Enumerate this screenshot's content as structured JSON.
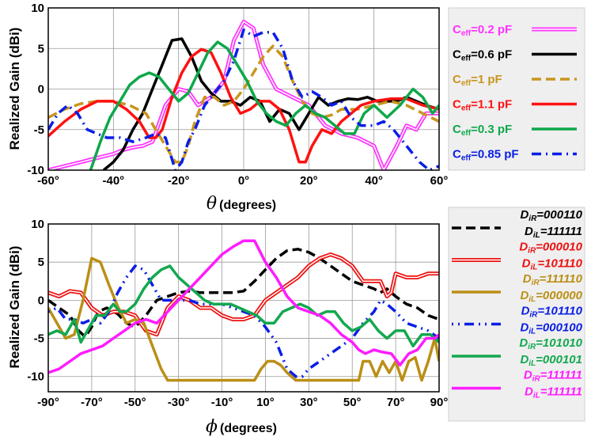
{
  "chart_data": [
    {
      "type": "line",
      "ylabel": "Realized Gain (dBi)",
      "xlabel_symbol": "θ",
      "xlabel_text": "(degrees)",
      "xlim": [
        -60,
        60
      ],
      "ylim": [
        -10,
        10
      ],
      "xticks": [
        "-60°",
        "-40°",
        "-20°",
        "0°",
        "20°",
        "40°",
        "60°"
      ],
      "yticks": [
        "10",
        "5",
        "0",
        "-5",
        "-10"
      ],
      "grid": true,
      "legend_position": "right",
      "series": [
        {
          "name": "0.2 pF",
          "name_prefix": "C",
          "name_sub": "eff",
          "name_rest": "=0.2 pF",
          "color": "#ff33ff",
          "style": "double",
          "x": [
            -60,
            -55,
            -50,
            -45,
            -40,
            -37,
            -34,
            -31,
            -28,
            -24,
            -20,
            -17,
            -14,
            -10,
            -6,
            -3,
            0,
            3,
            6,
            10,
            15,
            20,
            25,
            30,
            35,
            40,
            43,
            47,
            50,
            53,
            56,
            60
          ],
          "y": [
            -10,
            -9.5,
            -9,
            -8.5,
            -8,
            -7.5,
            -7.2,
            -7,
            -6.5,
            -2,
            0,
            -0.3,
            -2,
            -1,
            1,
            6,
            8.3,
            7.5,
            3,
            0,
            -1,
            -2,
            -4.5,
            -5.5,
            -6,
            -7,
            -10,
            -7,
            -4.5,
            -5,
            -3,
            -3
          ]
        },
        {
          "name": "0.6 pF",
          "name_prefix": "C",
          "name_sub": "eff",
          "name_rest": "=0.6 pF",
          "color": "#000000",
          "style": "solid",
          "x": [
            -43,
            -40,
            -37,
            -34,
            -31,
            -28,
            -25,
            -22,
            -19,
            -16,
            -13,
            -10,
            -7,
            -4,
            -1,
            2,
            5,
            8,
            11,
            14,
            17,
            20,
            23,
            26,
            29,
            32,
            35,
            38,
            41,
            44,
            47,
            50,
            53,
            56,
            60
          ],
          "y": [
            -10,
            -9,
            -7.5,
            -5,
            -3,
            0,
            3,
            6,
            6.2,
            4,
            1,
            -0.5,
            -1.5,
            -1.5,
            -2,
            -1,
            -1.5,
            -4,
            -2.5,
            -3,
            -5,
            -3,
            -1,
            -2,
            -1.5,
            -1.2,
            -1.3,
            -1,
            -1.5,
            -1.5,
            -1.5,
            -1,
            -1.5,
            -2,
            -2.5
          ]
        },
        {
          "name": "1 pF",
          "name_prefix": "C",
          "name_sub": "eff",
          "name_rest": "=1 pF",
          "color": "#c8961e",
          "style": "dashed",
          "x": [
            -60,
            -55,
            -50,
            -45,
            -40,
            -35,
            -30,
            -27,
            -24,
            -21,
            -19,
            -17,
            -15,
            -12,
            -9,
            -6,
            -3,
            0,
            3,
            6,
            9,
            12,
            15,
            18,
            21,
            24,
            27,
            30,
            35,
            40,
            45,
            50,
            55,
            60
          ],
          "y": [
            -3.5,
            -2.5,
            -1.8,
            -1.5,
            -1.5,
            -2,
            -3,
            -5,
            -7,
            -9,
            -9,
            -7,
            -4,
            -1,
            -1,
            -2,
            -1.5,
            0,
            2,
            4,
            5.3,
            4,
            1,
            -1.5,
            -3,
            -3.5,
            -3.2,
            -2.5,
            -2.5,
            -2,
            -1.5,
            -2,
            -3,
            -4
          ]
        },
        {
          "name": "1.1 pF",
          "name_prefix": "C",
          "name_sub": "eff",
          "name_rest": "=1.1 pF",
          "color": "#ff1111",
          "style": "solid",
          "x": [
            -60,
            -55,
            -50,
            -45,
            -40,
            -36,
            -32,
            -29,
            -27,
            -25,
            -22,
            -19,
            -16,
            -13,
            -10,
            -7,
            -4,
            -1,
            2,
            5,
            8,
            11,
            14,
            17,
            19,
            21,
            24,
            27,
            30,
            33,
            36,
            40,
            45,
            50,
            55,
            60
          ],
          "y": [
            -5.8,
            -4,
            -2.5,
            -1.5,
            -1.5,
            -2.5,
            -4,
            -6,
            -6,
            -5,
            -1,
            2,
            4,
            4.9,
            4.5,
            2,
            -1,
            -3,
            -2.5,
            -1.5,
            -1.5,
            -2.5,
            -5,
            -9,
            -9,
            -7,
            -5,
            -5.5,
            -4,
            -3,
            -2,
            -1.5,
            -1.2,
            -1.2,
            -2,
            -2.5
          ]
        },
        {
          "name": "0.3 pF",
          "name_prefix": "C",
          "name_sub": "eff",
          "name_rest": "=0.3 pF",
          "color": "#0ea84a",
          "style": "solid",
          "x": [
            -47,
            -44,
            -41,
            -38,
            -35,
            -32,
            -29,
            -26,
            -23,
            -20,
            -17,
            -14,
            -11,
            -8,
            -5,
            -2,
            1,
            4,
            7,
            10,
            13,
            16,
            19,
            22,
            25,
            28,
            31,
            34,
            37,
            40,
            44,
            48,
            52,
            55,
            58,
            60
          ],
          "y": [
            -10,
            -6.5,
            -3.5,
            -1.5,
            0.5,
            1.5,
            2,
            1.5,
            0,
            -1.5,
            -0.5,
            2,
            4.5,
            5.8,
            5,
            3,
            1,
            -1.5,
            -3,
            -4,
            -4.5,
            -3,
            -2,
            -3,
            -3.5,
            -4.5,
            -5.5,
            -5.5,
            -3,
            -2,
            -3.5,
            -2,
            0,
            -1,
            -3,
            -2
          ]
        },
        {
          "name": "0.85 pF",
          "name_prefix": "C",
          "name_sub": "eff",
          "name_rest": "=0.85 pF",
          "color": "#0a1ee6",
          "style": "dashdot",
          "x": [
            -60,
            -57,
            -54,
            -51,
            -48,
            -45,
            -42,
            -38,
            -34,
            -30,
            -27,
            -24,
            -21,
            -19,
            -17,
            -15,
            -12,
            -9,
            -6,
            -3,
            0,
            3,
            6,
            9,
            12,
            15,
            18,
            21,
            24,
            27,
            30,
            33,
            36,
            40,
            43,
            46,
            50,
            54,
            57,
            60
          ],
          "y": [
            -5,
            -3,
            -2,
            -3,
            -5,
            -5.5,
            -6,
            -6,
            -6.5,
            -6,
            -5.5,
            -6,
            -10,
            -9,
            -6.5,
            -5,
            -2,
            -0.5,
            1,
            3.5,
            7.3,
            6.5,
            7,
            7,
            5,
            1,
            -1,
            -0.3,
            -1,
            -2,
            -1.5,
            -3.5,
            -4.5,
            -4.5,
            -4,
            -5,
            -7,
            -9,
            -10,
            -9.5
          ]
        }
      ]
    },
    {
      "type": "line",
      "ylabel": "Realized Gain (dBi)",
      "xlabel_symbol": "ϕ",
      "xlabel_text": "(degrees)",
      "xlim": [
        -90,
        90
      ],
      "ylim": [
        -12,
        10
      ],
      "xticks": [
        "-90°",
        "-70°",
        "-50°",
        "-30°",
        "-10°",
        "10°",
        "30°",
        "50°",
        "70°",
        "90°"
      ],
      "yticks": [
        "10",
        "5",
        "0",
        "-5",
        "-10"
      ],
      "grid": true,
      "legend_position": "right",
      "series": [
        {
          "name": "DiR=000110 DiL=111111",
          "line1_prefix": "D",
          "line1_sub": "iR",
          "line1_rest": "=000110",
          "line2_prefix": "D",
          "line2_sub": "iL",
          "line2_rest": "=111111",
          "color": "#000000",
          "style": "dashed",
          "x": [
            -90,
            -85,
            -80,
            -76,
            -73,
            -70,
            -67,
            -63,
            -58,
            -54,
            -50,
            -45,
            -40,
            -35,
            -30,
            -25,
            -20,
            -15,
            -10,
            -5,
            0,
            5,
            10,
            15,
            20,
            25,
            30,
            35,
            40,
            45,
            50,
            55,
            60,
            63,
            66,
            70,
            75,
            80,
            85,
            90
          ],
          "y": [
            0,
            -1,
            -2,
            -4,
            -4.8,
            -3.5,
            -1.5,
            -1,
            -1.8,
            -3,
            -3.5,
            -2,
            0,
            0.5,
            1,
            1.2,
            1,
            1,
            1,
            1,
            1.2,
            2.5,
            4,
            5.5,
            6.5,
            6.7,
            6.3,
            5.5,
            4.5,
            3.5,
            2.5,
            2,
            1.5,
            1,
            1.5,
            0.5,
            -0.5,
            -1,
            -2,
            -2.5
          ]
        },
        {
          "name": "DiR=000010 DiL=101110",
          "line1_prefix": "D",
          "line1_sub": "iR",
          "line1_rest": "=000010",
          "line2_prefix": "D",
          "line2_sub": "iL",
          "line2_rest": "=101110",
          "color": "#ee1111",
          "style": "double",
          "x": [
            -90,
            -85,
            -80,
            -75,
            -70,
            -65,
            -60,
            -55,
            -50,
            -45,
            -40,
            -35,
            -30,
            -25,
            -20,
            -15,
            -10,
            -5,
            0,
            5,
            10,
            15,
            20,
            25,
            30,
            35,
            40,
            45,
            50,
            55,
            60,
            63,
            66,
            68,
            70,
            75,
            80,
            85,
            90
          ],
          "y": [
            1,
            0.5,
            1.2,
            1,
            -1,
            -2,
            -1.5,
            -1.5,
            -2,
            -4,
            -4.5,
            -1,
            0.5,
            0,
            -1,
            -1,
            -2,
            -2.5,
            -2.5,
            -2,
            0,
            1,
            2,
            3,
            4.5,
            5.5,
            6,
            5.5,
            4.5,
            2.5,
            2.5,
            2.5,
            0.5,
            1,
            3.5,
            3,
            3,
            3.5,
            3.5
          ]
        },
        {
          "name": "DiR=111110 DiL=000000",
          "line1_prefix": "D",
          "line1_sub": "iR",
          "line1_rest": "=111110",
          "line2_prefix": "D",
          "line2_sub": "iL",
          "line2_rest": "=000000",
          "color": "#bb8f16",
          "style": "solid",
          "x": [
            -90,
            -86,
            -82,
            -78,
            -74,
            -70,
            -66,
            -62,
            -58,
            -54,
            -50,
            -46,
            -42,
            -38,
            -35,
            5,
            8,
            11,
            14,
            17,
            20,
            24,
            53,
            55,
            58,
            61,
            64,
            67,
            70,
            73,
            76,
            79,
            82,
            85,
            88,
            90
          ],
          "y": [
            -1,
            -3,
            -5,
            -4.5,
            0,
            5.5,
            5,
            2,
            -0.8,
            -3,
            -2.5,
            -3,
            -6,
            -9,
            -10.5,
            -10.5,
            -9,
            -8,
            -8,
            -8.5,
            -9.5,
            -10.5,
            -10.5,
            -8,
            -8,
            -10,
            -8,
            -9.5,
            -8,
            -10.5,
            -8,
            -7.5,
            -10.5,
            -8,
            -5,
            -8
          ]
        },
        {
          "name": "DiR=101110 DiL=000100",
          "line1_prefix": "D",
          "line1_sub": "iR",
          "line1_rest": "=101110",
          "line2_prefix": "D",
          "line2_sub": "iL",
          "line2_rest": "=000100",
          "color": "#0a1ee6",
          "style": "dotdash",
          "x": [
            -90,
            -86,
            -82,
            -78,
            -74,
            -70,
            -66,
            -62,
            -58,
            -54,
            -50,
            -46,
            -42,
            -38,
            -34,
            -30,
            -25,
            -20,
            -15,
            -10,
            -5,
            0,
            5,
            10,
            15,
            20,
            24,
            27,
            30,
            35,
            40,
            45,
            50,
            55,
            60,
            63,
            66,
            70,
            75,
            80,
            85,
            90
          ],
          "y": [
            -1.5,
            -1,
            -2.5,
            -2.5,
            -3,
            -2.5,
            -3,
            -1.5,
            1,
            3,
            4.5,
            4,
            2,
            0,
            0,
            0,
            0,
            -0.5,
            -0.5,
            -0.5,
            -1,
            -1.5,
            -2,
            -3.5,
            -5.5,
            -9,
            -10,
            -10,
            -9,
            -8,
            -7,
            -6,
            -5,
            -3,
            -1.5,
            0,
            -0.5,
            -1.5,
            -3,
            -3.5,
            -4,
            -5
          ]
        },
        {
          "name": "DiR=101010 DiL=000101",
          "line1_prefix": "D",
          "line1_sub": "iR",
          "line1_rest": "=101010",
          "line2_prefix": "D",
          "line2_sub": "iL",
          "line2_rest": "=000101",
          "color": "#13a84f",
          "style": "solid",
          "x": [
            -90,
            -86,
            -82,
            -78,
            -75,
            -72,
            -68,
            -64,
            -60,
            -57,
            -54,
            -50,
            -46,
            -42,
            -38,
            -34,
            -30,
            -26,
            -22,
            -18,
            -14,
            -10,
            -6,
            -2,
            2,
            6,
            10,
            14,
            18,
            22,
            26,
            30,
            34,
            38,
            42,
            46,
            50,
            54,
            58,
            62,
            66,
            70,
            74,
            78,
            82,
            86,
            90
          ],
          "y": [
            -4.5,
            -4,
            -4.5,
            -2.5,
            -5.5,
            -4,
            -2,
            -2,
            -0.5,
            -1.5,
            -1.5,
            -0.5,
            1.5,
            3,
            4,
            4.5,
            3,
            2,
            1,
            0,
            -0.5,
            -0.5,
            -0.5,
            -1,
            -1.5,
            -2,
            -3,
            -3,
            -1.5,
            -1,
            -0.5,
            -1,
            -2,
            -1.5,
            -1.5,
            -3,
            -4,
            -3.5,
            -2.5,
            -4,
            -5,
            -4,
            -4,
            -6,
            -4.5,
            -4.5,
            -5.5
          ]
        },
        {
          "name": "DiR=111111 DiL=111111",
          "line1_prefix": "D",
          "line1_sub": "iR",
          "line1_rest": "=111111",
          "line2_prefix": "D",
          "line2_sub": "iL",
          "line2_rest": "=111111",
          "color": "#ff1cff",
          "style": "solid",
          "x": [
            -90,
            -85,
            -80,
            -75,
            -70,
            -65,
            -60,
            -55,
            -50,
            -45,
            -40,
            -35,
            -30,
            -25,
            -20,
            -15,
            -10,
            -5,
            0,
            5,
            10,
            15,
            20,
            25,
            30,
            35,
            40,
            45,
            50,
            53,
            56,
            60,
            64,
            68,
            72,
            76,
            80,
            84,
            88,
            90
          ],
          "y": [
            -9.5,
            -9,
            -8,
            -7,
            -6.5,
            -6,
            -5,
            -4,
            -3,
            -2.5,
            -3,
            -1.5,
            0,
            1.5,
            3,
            4.5,
            6,
            7,
            7.8,
            7.8,
            5,
            3,
            0.5,
            -1,
            -1.5,
            -2,
            -3,
            -4.5,
            -5.5,
            -6.5,
            -7,
            -6.5,
            -6.8,
            -7,
            -8.5,
            -7,
            -6.5,
            -5,
            -5,
            -4.5
          ]
        }
      ]
    }
  ]
}
